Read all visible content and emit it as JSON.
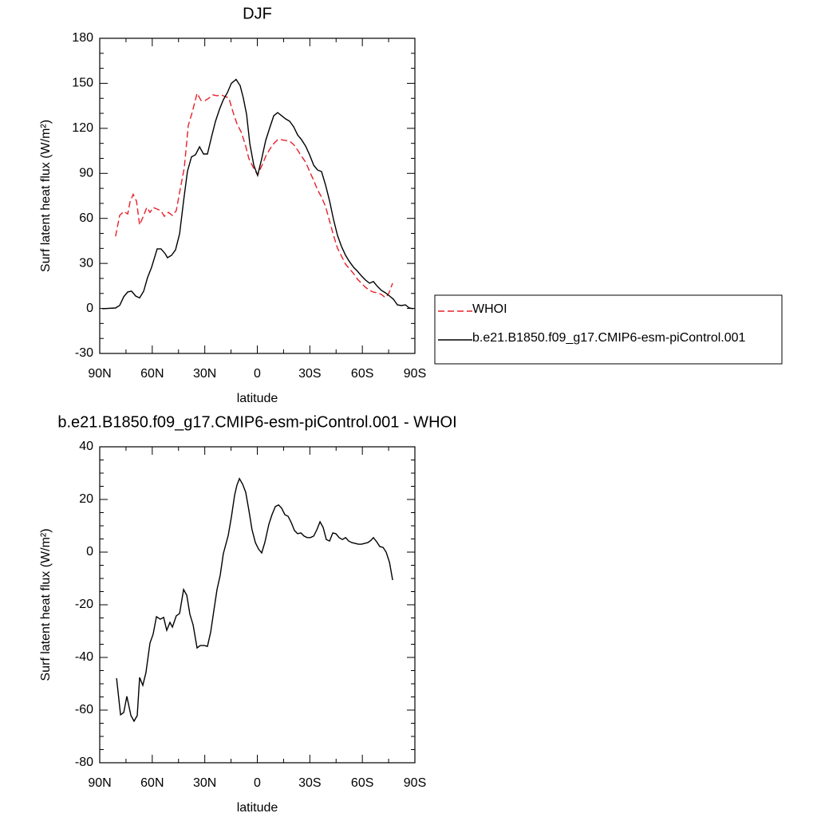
{
  "chart_data": [
    {
      "type": "line",
      "title": "DJF",
      "xlabel": "latitude",
      "ylabel": "Surf latent heat flux (W/m²)",
      "xlim": [
        90,
        -90
      ],
      "xticks": [
        {
          "value": 90,
          "label": "90N"
        },
        {
          "value": 60,
          "label": "60N"
        },
        {
          "value": 30,
          "label": "30N"
        },
        0,
        {
          "value": -30,
          "label": "30S"
        },
        {
          "value": -60,
          "label": "60S"
        },
        {
          "value": -90,
          "label": "90S"
        }
      ],
      "ylim": [
        -30,
        180
      ],
      "yticks": [
        -30,
        0,
        30,
        60,
        90,
        120,
        150,
        180
      ],
      "legend": "right",
      "series": [
        {
          "name": "WHOI",
          "color": "#e8202a",
          "dashed": true,
          "x": [
            81,
            78.6,
            76.3,
            74,
            72.7,
            70.9,
            69,
            67.2,
            64.9,
            63.1,
            61.3,
            59.5,
            57.2,
            55,
            53.1,
            50.8,
            48.5,
            46.3,
            44,
            41.7,
            39.4,
            37.1,
            34.4,
            32.1,
            29.8,
            27.6,
            25.3,
            23,
            20.7,
            18.4,
            16.2,
            13.9,
            11.6,
            9.3,
            7,
            4.8,
            2.5,
            -0.2,
            -2.5,
            -4.8,
            -7.1,
            -9.4,
            -11.6,
            -13.9,
            -16.2,
            -18.5,
            -20.8,
            -23,
            -25.3,
            -27.6,
            -29.9,
            -32.2,
            -34.4,
            -36.7,
            -39,
            -41.3,
            -43.5,
            -45.8,
            -48.1,
            -50.4,
            -52.7,
            -55,
            -57.2,
            -59.5,
            -61.8,
            -64.1,
            -66.3,
            -68.6,
            -70.9,
            -73.2,
            -75,
            -77.3
          ],
          "values": [
            48,
            62,
            64.6,
            63,
            71,
            76,
            71.5,
            55.6,
            62,
            67.3,
            64,
            67.3,
            66.2,
            65.1,
            61.4,
            64,
            62,
            65.1,
            79.5,
            93.8,
            122,
            131,
            143.3,
            138.5,
            138.5,
            140.2,
            142.3,
            141.7,
            142.3,
            141.2,
            140.2,
            131,
            123,
            117.7,
            109.8,
            99.7,
            94.4,
            89,
            94.9,
            101.3,
            106.1,
            109.8,
            112.4,
            112.4,
            111.9,
            111.4,
            109.2,
            105.5,
            101.3,
            97.5,
            91.2,
            85.3,
            79,
            74.2,
            67.8,
            58.2,
            48.7,
            40.1,
            34.8,
            29.5,
            26.4,
            23.2,
            19.5,
            16.8,
            14.1,
            12,
            10.9,
            10.4,
            9.3,
            7.2,
            9.8,
            16.8
          ]
        },
        {
          "name": "b.e21.B1850.f09_g17.CMIP6-esm-piControl.001",
          "color": "#000000",
          "dashed": false,
          "x": [
            88.6,
            81,
            78.6,
            76.3,
            74,
            71.8,
            69.5,
            67.2,
            64.9,
            62.7,
            60.4,
            57.2,
            55,
            52.6,
            51.3,
            49,
            46.7,
            44.4,
            42.1,
            39.9,
            37.6,
            35.3,
            33,
            30.7,
            28.5,
            26.2,
            23.9,
            21.6,
            19.4,
            17.1,
            14.8,
            12.1,
            9.8,
            8,
            6.1,
            4.3,
            2,
            -0.2,
            -2.5,
            -4.8,
            -7.1,
            -9.4,
            -11.6,
            -13.9,
            -16.2,
            -18.5,
            -20.8,
            -23,
            -25.3,
            -27.6,
            -29.9,
            -32.2,
            -34.4,
            -36.7,
            -39,
            -41.3,
            -43.5,
            -45.8,
            -48.1,
            -50.4,
            -52.7,
            -55,
            -57.2,
            -59.5,
            -61.8,
            -64.1,
            -66.3,
            -68.6,
            -70.9,
            -73.2,
            -75.5,
            -77.7,
            -80,
            -82.3,
            -84.6,
            -86.8,
            -89.1
          ],
          "values": [
            -0.2,
            0.3,
            2,
            7.8,
            11,
            11.5,
            8.3,
            7,
            11.5,
            20.5,
            27.4,
            39.7,
            39.7,
            36.4,
            33.8,
            35.4,
            39,
            49.7,
            71.6,
            91.2,
            101,
            102.4,
            107.7,
            102.9,
            102.9,
            114,
            124.7,
            132.7,
            139,
            143.8,
            150,
            152.6,
            148.4,
            140.4,
            129.2,
            109.8,
            95.4,
            88.6,
            99.7,
            111.9,
            120.4,
            128.4,
            130.5,
            128.4,
            126.3,
            124.7,
            121,
            115.6,
            112.4,
            108.1,
            102.3,
            95.4,
            92.2,
            91.2,
            82.1,
            71.6,
            59.3,
            48.7,
            41.2,
            35.4,
            31.1,
            27.4,
            24.8,
            21.6,
            18.9,
            16.8,
            17.9,
            14.7,
            12,
            10.4,
            8.3,
            6.2,
            2.4,
            1.9,
            2.4,
            0.3,
            -0.2
          ]
        }
      ]
    },
    {
      "type": "line",
      "title": "b.e21.B1850.f09_g17.CMIP6-esm-piControl.001 - WHOI",
      "xlabel": "latitude",
      "ylabel": "Surf latent heat flux (W/m²)",
      "xlim": [
        90,
        -90
      ],
      "xticks": [
        {
          "value": 90,
          "label": "90N"
        },
        {
          "value": 60,
          "label": "60N"
        },
        {
          "value": 30,
          "label": "30N"
        },
        0,
        {
          "value": -30,
          "label": "30S"
        },
        {
          "value": -60,
          "label": "60S"
        },
        {
          "value": -90,
          "label": "90S"
        }
      ],
      "ylim": [
        -80,
        40
      ],
      "yticks": [
        -80,
        -60,
        -40,
        -20,
        0,
        20,
        40
      ],
      "series": [
        {
          "color": "#000000",
          "dashed": false,
          "x": [
            80.4,
            78.1,
            76.3,
            74.5,
            72.2,
            70.4,
            68.6,
            67.2,
            65.4,
            63.6,
            61.3,
            59.5,
            57.6,
            55.4,
            53.5,
            51.7,
            49.9,
            48.5,
            46.3,
            44.4,
            42.1,
            40.3,
            38.5,
            36.7,
            34.4,
            32.6,
            30.3,
            28.5,
            26.6,
            24.8,
            23,
            21.2,
            19.4,
            16.6,
            14.8,
            13,
            11.6,
            10.2,
            8.4,
            6.6,
            4.8,
            3,
            1.1,
            -0.7,
            -2.5,
            -4.3,
            -6.6,
            -8.4,
            -10.3,
            -12.1,
            -13.9,
            -15.7,
            -17.6,
            -19.4,
            -21.2,
            -23,
            -24.9,
            -26.7,
            -28.5,
            -30.3,
            -32.2,
            -34,
            -35.8,
            -37.6,
            -39.4,
            -41.3,
            -43.1,
            -44.9,
            -46.7,
            -48.6,
            -50.4,
            -52.2,
            -54,
            -55.9,
            -57.7,
            -59.5,
            -61.3,
            -63.1,
            -65,
            -66.3,
            -68.2,
            -70,
            -71.8,
            -73.6,
            -75.5,
            -77.3
          ],
          "values": [
            -47.9,
            -61.8,
            -60.9,
            -54.8,
            -62.1,
            -64.2,
            -62.1,
            -47.6,
            -50.6,
            -45.8,
            -34.5,
            -31.2,
            -24.5,
            -25.5,
            -24.8,
            -29.7,
            -26.7,
            -28.5,
            -24.2,
            -23.3,
            -14.2,
            -16.4,
            -23.6,
            -27.6,
            -36.4,
            -35.5,
            -35.5,
            -35.8,
            -30.3,
            -22.1,
            -14.2,
            -8.8,
            -0.6,
            6.4,
            13.3,
            21.5,
            25.5,
            27.9,
            25.8,
            22.7,
            15.8,
            8.5,
            3.6,
            1.2,
            -0.3,
            3.6,
            10.6,
            14.2,
            17.3,
            17.9,
            16.7,
            14.2,
            13.6,
            11.2,
            8.2,
            7,
            7.3,
            6.1,
            5.5,
            5.5,
            6.1,
            8.5,
            11.5,
            9.4,
            4.8,
            4.2,
            7.3,
            7,
            5.5,
            4.8,
            5.5,
            4.2,
            3.6,
            3.3,
            3,
            3,
            3.3,
            3.6,
            4.5,
            5.5,
            3.9,
            2.1,
            1.8,
            0,
            -3.9,
            -10.6
          ]
        }
      ]
    }
  ]
}
